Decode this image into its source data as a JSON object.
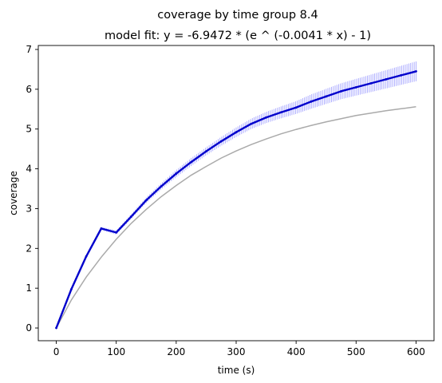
{
  "chart_data": {
    "type": "line",
    "title": "coverage by time group 8.4",
    "subtitle": "model fit: y = -6.9472 * (e ^ (-0.0041 * x) - 1)",
    "xlabel": "time (s)",
    "ylabel": "coverage",
    "xlim": [
      -30,
      630
    ],
    "ylim": [
      -0.32,
      7.1
    ],
    "xticks": [
      0,
      100,
      200,
      300,
      400,
      500,
      600
    ],
    "yticks": [
      0,
      1,
      2,
      3,
      4,
      5,
      6,
      7
    ],
    "grid": false,
    "legend": "none",
    "x": [
      0,
      25,
      50,
      75,
      100,
      125,
      150,
      175,
      200,
      225,
      250,
      275,
      300,
      325,
      350,
      375,
      400,
      425,
      450,
      475,
      500,
      525,
      550,
      575,
      600
    ],
    "series": [
      {
        "values": [
          0,
          0.97,
          1.8,
          2.5,
          2.4,
          2.8,
          3.21,
          3.56,
          3.88,
          4.17,
          4.44,
          4.69,
          4.92,
          5.13,
          5.29,
          5.42,
          5.54,
          5.69,
          5.82,
          5.95,
          6.05,
          6.15,
          6.25,
          6.35,
          6.45
        ],
        "error": [
          0,
          0.02,
          0.03,
          0.04,
          0.05,
          0.06,
          0.07,
          0.08,
          0.09,
          0.1,
          0.1,
          0.11,
          0.12,
          0.13,
          0.14,
          0.15,
          0.16,
          0.18,
          0.19,
          0.2,
          0.21,
          0.22,
          0.23,
          0.24,
          0.25
        ],
        "color": "#0000cc",
        "error_color": "#8888ff"
      },
      {
        "kind": "fit",
        "values": [
          0,
          0.7,
          1.28,
          1.78,
          2.23,
          2.63,
          2.98,
          3.3,
          3.58,
          3.84,
          4.06,
          4.27,
          4.45,
          4.61,
          4.75,
          4.88,
          4.99,
          5.09,
          5.18,
          5.26,
          5.34,
          5.4,
          5.46,
          5.51,
          5.56
        ],
        "color": "#aaaaaa"
      }
    ]
  }
}
